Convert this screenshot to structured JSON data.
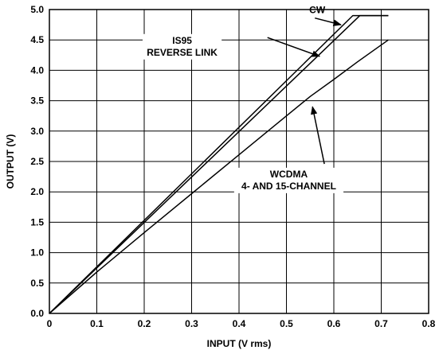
{
  "chart_data": {
    "type": "line",
    "title": "",
    "xlabel": "INPUT (V rms)",
    "ylabel": "OUTPUT (V)",
    "xlim": [
      0,
      0.8
    ],
    "ylim": [
      0,
      5.0
    ],
    "grid": true,
    "x_ticks": [
      {
        "value": 0,
        "label": "0"
      },
      {
        "value": 0.1,
        "label": "0.1"
      },
      {
        "value": 0.2,
        "label": "0.2"
      },
      {
        "value": 0.3,
        "label": "0.3"
      },
      {
        "value": 0.4,
        "label": "0.4"
      },
      {
        "value": 0.5,
        "label": "0.5"
      },
      {
        "value": 0.6,
        "label": "0.6"
      },
      {
        "value": 0.7,
        "label": "0.7"
      },
      {
        "value": 0.8,
        "label": "0.8"
      }
    ],
    "y_ticks": [
      {
        "value": 0,
        "label": "0.0"
      },
      {
        "value": 0.5,
        "label": "0.5"
      },
      {
        "value": 1.0,
        "label": "1.0"
      },
      {
        "value": 1.5,
        "label": "1.5"
      },
      {
        "value": 2.0,
        "label": "2.0"
      },
      {
        "value": 2.5,
        "label": "2.5"
      },
      {
        "value": 3.0,
        "label": "3.0"
      },
      {
        "value": 3.5,
        "label": "3.5"
      },
      {
        "value": 4.0,
        "label": "4.0"
      },
      {
        "value": 4.5,
        "label": "4.5"
      },
      {
        "value": 5.0,
        "label": "5.0"
      }
    ],
    "series": [
      {
        "key": "cw",
        "x": [
          0,
          0.64,
          0.66,
          0.715
        ],
        "y": [
          0,
          4.9,
          4.9,
          4.9
        ]
      },
      {
        "key": "is95",
        "x": [
          0,
          0.655,
          0.67,
          0.715
        ],
        "y": [
          0,
          4.9,
          4.9,
          4.9
        ]
      },
      {
        "key": "wcdma",
        "x": [
          0,
          0.1,
          0.2,
          0.3,
          0.4,
          0.5,
          0.55,
          0.6,
          0.65,
          0.715
        ],
        "y": [
          0,
          0.68,
          1.33,
          1.97,
          2.61,
          3.25,
          3.57,
          3.85,
          4.14,
          4.5
        ]
      }
    ],
    "annotations": [
      {
        "key": "cw",
        "lines": [
          "CW"
        ],
        "anchor": [
          0.565,
          4.94
        ],
        "target": [
          0.615,
          4.75
        ],
        "arrow_from": [
          0.56,
          4.86
        ]
      },
      {
        "key": "is95",
        "lines": [
          "IS95",
          "REVERSE LINK"
        ],
        "anchor": [
          0.28,
          4.44
        ],
        "target": [
          0.57,
          4.23
        ],
        "arrow_from": [
          0.46,
          4.54
        ]
      },
      {
        "key": "wcdma",
        "lines": [
          "WCDMA",
          "4- AND 15-CHANNEL"
        ],
        "anchor": [
          0.505,
          2.24
        ],
        "target": [
          0.555,
          3.4
        ],
        "arrow_from": [
          0.58,
          2.46
        ]
      }
    ]
  }
}
